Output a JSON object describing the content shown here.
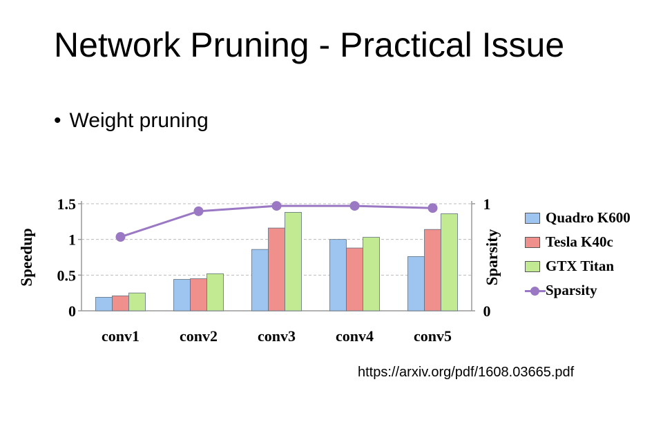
{
  "slide": {
    "title": "Network Pruning - Practical Issue",
    "bullet": "Weight pruning",
    "source": "https://arxiv.org/pdf/1608.03665.pdf"
  },
  "chart_data": {
    "type": "bar",
    "categories": [
      "conv1",
      "conv2",
      "conv3",
      "conv4",
      "conv5"
    ],
    "series": [
      {
        "name": "Quadro K600",
        "values": [
          0.19,
          0.44,
          0.86,
          1.0,
          0.76
        ],
        "color": "#9ec5f0"
      },
      {
        "name": "Tesla K40c",
        "values": [
          0.21,
          0.45,
          1.16,
          0.88,
          1.14
        ],
        "color": "#f0908c"
      },
      {
        "name": "GTX Titan",
        "values": [
          0.25,
          0.52,
          1.38,
          1.03,
          1.36
        ],
        "color": "#c2ea92"
      }
    ],
    "line_series": {
      "name": "Sparsity",
      "values": [
        0.69,
        0.93,
        0.98,
        0.98,
        0.96
      ],
      "color": "#9a78c4"
    },
    "ylabel": "Speedup",
    "y2label": "Sparsity",
    "ylim": [
      0,
      1.5
    ],
    "y2lim": [
      0,
      1
    ],
    "yticks": [
      "0",
      "0.5",
      "1",
      "1.5"
    ],
    "y2ticks": [
      "0",
      "1"
    ],
    "grid": "dashed",
    "legend": "right"
  }
}
